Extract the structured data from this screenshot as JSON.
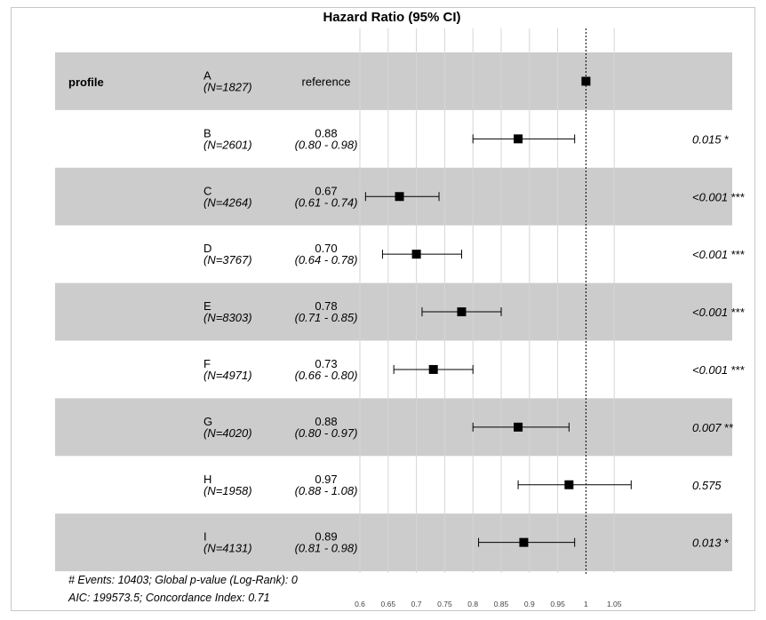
{
  "chart_data": {
    "type": "forest",
    "title": "Hazard Ratio (95% CI)",
    "variable": "profile",
    "reference_value": 1,
    "xlim": [
      0.56,
      1.08
    ],
    "x_ticks": [
      0.6,
      0.65,
      0.7,
      0.75,
      0.8,
      0.85,
      0.9,
      0.95,
      1,
      1.05
    ],
    "x_tick_labels": [
      "0.6",
      "0.65",
      "0.7",
      "0.75",
      "0.8",
      "0.85",
      "0.9",
      "0.95",
      "1",
      "1.05"
    ],
    "grid": true,
    "rows": [
      {
        "level": "A",
        "n": "(N=1827)",
        "hr_text": "reference",
        "ci_text": "",
        "p_text": "",
        "hr": 1,
        "lo": null,
        "hi": null,
        "shaded": true
      },
      {
        "level": "B",
        "n": "(N=2601)",
        "hr_text": "0.88",
        "ci_text": "(0.80 - 0.98)",
        "p_text": "0.015 *",
        "hr": 0.88,
        "lo": 0.8,
        "hi": 0.98,
        "shaded": false
      },
      {
        "level": "C",
        "n": "(N=4264)",
        "hr_text": "0.67",
        "ci_text": "(0.61 - 0.74)",
        "p_text": "<0.001 ***",
        "hr": 0.67,
        "lo": 0.61,
        "hi": 0.74,
        "shaded": true
      },
      {
        "level": "D",
        "n": "(N=3767)",
        "hr_text": "0.70",
        "ci_text": "(0.64 - 0.78)",
        "p_text": "<0.001 ***",
        "hr": 0.7,
        "lo": 0.64,
        "hi": 0.78,
        "shaded": false
      },
      {
        "level": "E",
        "n": "(N=8303)",
        "hr_text": "0.78",
        "ci_text": "(0.71 - 0.85)",
        "p_text": "<0.001 ***",
        "hr": 0.78,
        "lo": 0.71,
        "hi": 0.85,
        "shaded": true
      },
      {
        "level": "F",
        "n": "(N=4971)",
        "hr_text": "0.73",
        "ci_text": "(0.66 - 0.80)",
        "p_text": "<0.001 ***",
        "hr": 0.73,
        "lo": 0.66,
        "hi": 0.8,
        "shaded": false
      },
      {
        "level": "G",
        "n": "(N=4020)",
        "hr_text": "0.88",
        "ci_text": "(0.80 - 0.97)",
        "p_text": "0.007 **",
        "hr": 0.88,
        "lo": 0.8,
        "hi": 0.97,
        "shaded": true
      },
      {
        "level": "H",
        "n": "(N=1958)",
        "hr_text": "0.97",
        "ci_text": "(0.88 - 1.08)",
        "p_text": "0.575",
        "hr": 0.97,
        "lo": 0.88,
        "hi": 1.08,
        "shaded": false
      },
      {
        "level": "I",
        "n": "(N=4131)",
        "hr_text": "0.89",
        "ci_text": "(0.81 - 0.98)",
        "p_text": "0.013 *",
        "hr": 0.89,
        "lo": 0.81,
        "hi": 0.98,
        "shaded": true
      }
    ],
    "footer_lines": [
      "# Events: 10403; Global p-value (Log-Rank): 0",
      "AIC: 199573.5; Concordance Index: 0.71"
    ]
  }
}
